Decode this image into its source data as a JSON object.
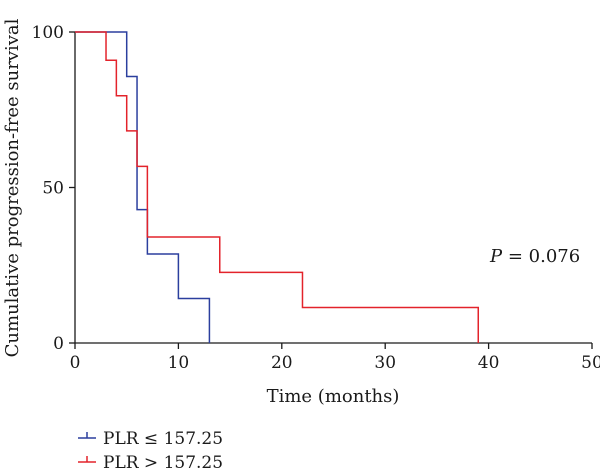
{
  "chart_data": {
    "type": "line",
    "step": true,
    "xlabel": "Time (months)",
    "ylabel": "Cumulative progression-free survival",
    "xlim": [
      0,
      50
    ],
    "ylim": [
      0,
      100
    ],
    "xticks": [
      "0",
      "10",
      "20",
      "30",
      "40",
      "50"
    ],
    "yticks": [
      "0",
      "50",
      "100"
    ],
    "grid": false,
    "legend_position": "bottom-left",
    "annotation": {
      "prefix": "P",
      "text": " = 0.076"
    },
    "series": [
      {
        "name": "PLR ≤ 157.25",
        "color": "#2b3f9e",
        "x": [
          0,
          5,
          6,
          7,
          10,
          13
        ],
        "y": [
          100,
          85.7,
          42.9,
          28.6,
          14.3,
          0
        ]
      },
      {
        "name": "PLR > 157.25",
        "color": "#e3232b",
        "x": [
          0,
          3,
          4,
          5,
          6,
          7,
          14,
          22,
          39
        ],
        "y": [
          100,
          90.9,
          79.5,
          68.2,
          56.8,
          34.1,
          22.7,
          11.4,
          0
        ]
      }
    ]
  }
}
